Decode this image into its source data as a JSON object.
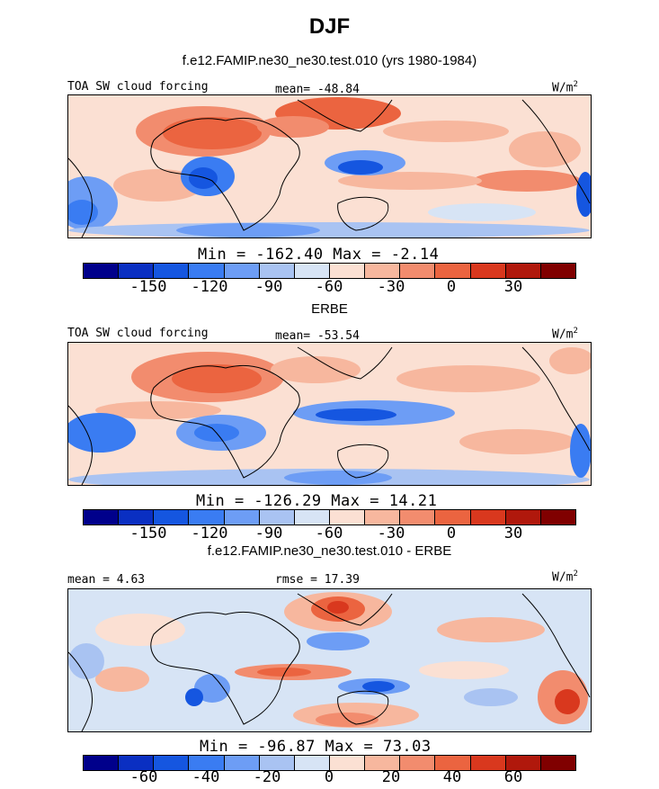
{
  "title": "DJF",
  "colors": [
    "#00008b",
    "#0a2fc2",
    "#1556e0",
    "#3a7cf2",
    "#6d9df5",
    "#a9c3f2",
    "#d7e4f5",
    "#fbe0d3",
    "#f7b79e",
    "#f28c6e",
    "#eb6440",
    "#d9381e",
    "#b0180c",
    "#800000"
  ],
  "panels": [
    {
      "id": "model",
      "subtitle": "f.e12.FAMIP.ne30_ne30.test.010 (yrs 1980-1984)",
      "left_label": "TOA SW cloud forcing",
      "center_label": "mean= -48.84",
      "unit": "W/m",
      "unit_sup": "2",
      "stats": "Min = -162.40 Max = -2.14",
      "ticks": [
        "-150",
        "-120",
        "-90",
        "-60",
        "-30",
        "0",
        "30"
      ]
    },
    {
      "id": "obs",
      "subtitle": "ERBE",
      "left_label": "TOA SW cloud forcing",
      "center_label": "mean= -53.54",
      "unit": "W/m",
      "unit_sup": "2",
      "stats": "Min = -126.29 Max = 14.21",
      "ticks": [
        "-150",
        "-120",
        "-90",
        "-60",
        "-30",
        "0",
        "30"
      ]
    },
    {
      "id": "diff",
      "subtitle": "f.e12.FAMIP.ne30_ne30.test.010 - ERBE",
      "left_label": "mean = 4.63",
      "center_label": "rmse = 17.39",
      "unit": "W/m",
      "unit_sup": "2",
      "stats": "Min = -96.87 Max = 73.03",
      "ticks": [
        "-60",
        "-40",
        "-20",
        "0",
        "20",
        "40",
        "60"
      ]
    }
  ],
  "chart_data": [
    {
      "type": "heatmap",
      "title": "f.e12.FAMIP.ne30_ne30.test.010 (yrs 1980-1984)",
      "variable": "TOA SW cloud forcing",
      "units": "W/m2",
      "mean": -48.84,
      "min": -162.4,
      "max": -2.14,
      "colorbar_levels": [
        -165,
        -150,
        -135,
        -120,
        -105,
        -90,
        -75,
        -60,
        -45,
        -30,
        -15,
        0,
        15,
        30,
        45
      ],
      "colorbar_ticks": [
        -150,
        -120,
        -90,
        -60,
        -30,
        0,
        30
      ]
    },
    {
      "type": "heatmap",
      "title": "ERBE",
      "variable": "TOA SW cloud forcing",
      "units": "W/m2",
      "mean": -53.54,
      "min": -126.29,
      "max": 14.21,
      "colorbar_levels": [
        -165,
        -150,
        -135,
        -120,
        -105,
        -90,
        -75,
        -60,
        -45,
        -30,
        -15,
        0,
        15,
        30,
        45
      ],
      "colorbar_ticks": [
        -150,
        -120,
        -90,
        -60,
        -30,
        0,
        30
      ]
    },
    {
      "type": "heatmap",
      "title": "f.e12.FAMIP.ne30_ne30.test.010 - ERBE",
      "units": "W/m2",
      "mean": 4.63,
      "rmse": 17.39,
      "min": -96.87,
      "max": 73.03,
      "colorbar_levels": [
        -70,
        -60,
        -50,
        -40,
        -30,
        -20,
        -10,
        0,
        10,
        20,
        30,
        40,
        50,
        60,
        70
      ],
      "colorbar_ticks": [
        -60,
        -40,
        -20,
        0,
        20,
        40,
        60
      ]
    }
  ]
}
